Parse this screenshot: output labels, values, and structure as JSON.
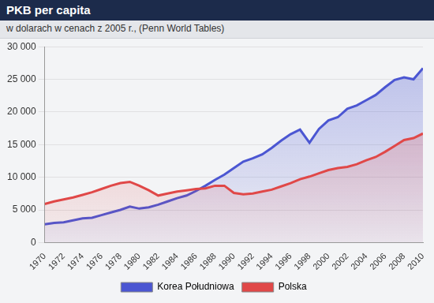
{
  "chart_data": {
    "type": "line",
    "title": "PKB per capita",
    "subtitle": "w dolarach w cenach z 2005 r., (Penn World Tables)",
    "x": [
      1970,
      1971,
      1972,
      1973,
      1974,
      1975,
      1976,
      1977,
      1978,
      1979,
      1980,
      1981,
      1982,
      1983,
      1984,
      1985,
      1986,
      1987,
      1988,
      1989,
      1990,
      1991,
      1992,
      1993,
      1994,
      1995,
      1996,
      1997,
      1998,
      1999,
      2000,
      2001,
      2002,
      2003,
      2004,
      2005,
      2006,
      2007,
      2008,
      2009,
      2010
    ],
    "series": [
      {
        "name": "Korea Południowa",
        "color": "#4b56d2",
        "values": [
          2800,
          3000,
          3100,
          3400,
          3700,
          3800,
          4200,
          4600,
          5000,
          5500,
          5200,
          5400,
          5800,
          6300,
          6800,
          7200,
          7900,
          8700,
          9600,
          10400,
          11400,
          12400,
          12900,
          13500,
          14500,
          15600,
          16600,
          17300,
          15300,
          17400,
          18700,
          19200,
          20500,
          21000,
          21800,
          22600,
          23800,
          24900,
          25300,
          25000,
          26700
        ]
      },
      {
        "name": "Polska",
        "color": "#e04848",
        "values": [
          5900,
          6300,
          6600,
          6900,
          7300,
          7700,
          8200,
          8700,
          9100,
          9300,
          8700,
          8000,
          7200,
          7500,
          7800,
          8000,
          8200,
          8300,
          8700,
          8700,
          7600,
          7400,
          7500,
          7800,
          8100,
          8600,
          9100,
          9700,
          10100,
          10600,
          11100,
          11400,
          11600,
          12000,
          12600,
          13100,
          13900,
          14800,
          15700,
          16000,
          16700
        ]
      }
    ],
    "xlim": [
      1970,
      2010
    ],
    "xticks": [
      1970,
      1972,
      1974,
      1976,
      1978,
      1980,
      1982,
      1984,
      1986,
      1988,
      1990,
      1992,
      1994,
      1996,
      1998,
      2000,
      2002,
      2004,
      2006,
      2008,
      2010
    ],
    "ylim": [
      0,
      30000
    ],
    "yticks": [
      0,
      {
        "value": 5000,
        "label": "5 000"
      },
      {
        "value": 10000,
        "label": "10 000"
      },
      {
        "value": 15000,
        "label": "15 000"
      },
      {
        "value": 20000,
        "label": "20 000"
      },
      {
        "value": 25000,
        "label": "25 000"
      },
      {
        "value": 30000,
        "label": "30 000"
      }
    ],
    "grid": true,
    "legend": "bottom"
  }
}
